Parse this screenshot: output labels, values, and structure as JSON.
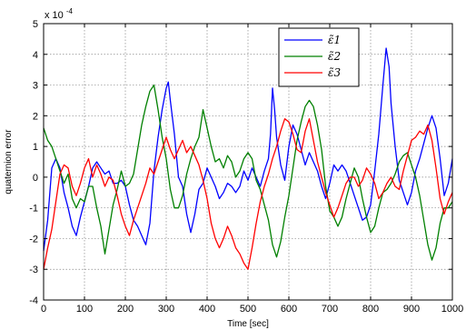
{
  "chart_data": {
    "type": "line",
    "xlabel": "Time [sec]",
    "ylabel": "quaternion error",
    "scale_label": "x 10",
    "scale_exponent": "-4",
    "xlim": [
      0,
      1000
    ],
    "ylim": [
      -4,
      5
    ],
    "x_ticks": [
      "0",
      "100",
      "200",
      "300",
      "400",
      "500",
      "600",
      "700",
      "800",
      "900",
      "1000"
    ],
    "y_ticks": [
      "-4",
      "-3",
      "-2",
      "-1",
      "0",
      "1",
      "2",
      "3",
      "4",
      "5"
    ],
    "grid": true,
    "legend_position": "top-right",
    "series": [
      {
        "name": "ε̃1",
        "color": "#0000ff",
        "points": [
          [
            0,
            -2.4
          ],
          [
            10,
            -1.4
          ],
          [
            20,
            0.3
          ],
          [
            30,
            0.6
          ],
          [
            40,
            0.3
          ],
          [
            50,
            -0.5
          ],
          [
            60,
            -1.0
          ],
          [
            70,
            -1.6
          ],
          [
            80,
            -1.9
          ],
          [
            90,
            -1.3
          ],
          [
            100,
            -0.8
          ],
          [
            110,
            -0.3
          ],
          [
            120,
            0.3
          ],
          [
            130,
            0.5
          ],
          [
            140,
            0.3
          ],
          [
            150,
            0.1
          ],
          [
            160,
            0.2
          ],
          [
            170,
            -0.2
          ],
          [
            180,
            -0.2
          ],
          [
            190,
            -0.1
          ],
          [
            200,
            -0.3
          ],
          [
            210,
            -0.9
          ],
          [
            220,
            -1.4
          ],
          [
            230,
            -1.6
          ],
          [
            240,
            -1.9
          ],
          [
            250,
            -2.2
          ],
          [
            260,
            -1.5
          ],
          [
            270,
            0.2
          ],
          [
            280,
            1.3
          ],
          [
            290,
            2.2
          ],
          [
            300,
            2.9
          ],
          [
            305,
            3.1
          ],
          [
            310,
            2.5
          ],
          [
            320,
            1.4
          ],
          [
            330,
            0.0
          ],
          [
            340,
            -0.3
          ],
          [
            350,
            -1.2
          ],
          [
            360,
            -1.8
          ],
          [
            370,
            -1.2
          ],
          [
            380,
            -0.4
          ],
          [
            390,
            -0.2
          ],
          [
            400,
            0.3
          ],
          [
            410,
            0.0
          ],
          [
            420,
            -0.3
          ],
          [
            430,
            -0.7
          ],
          [
            440,
            -0.5
          ],
          [
            450,
            -0.2
          ],
          [
            460,
            -0.3
          ],
          [
            470,
            -0.5
          ],
          [
            480,
            -0.3
          ],
          [
            490,
            0.2
          ],
          [
            500,
            -0.1
          ],
          [
            510,
            0.3
          ],
          [
            520,
            0.0
          ],
          [
            530,
            -0.3
          ],
          [
            540,
            0.2
          ],
          [
            550,
            0.6
          ],
          [
            555,
            1.4
          ],
          [
            560,
            2.9
          ],
          [
            565,
            2.2
          ],
          [
            570,
            1.3
          ],
          [
            580,
            0.4
          ],
          [
            590,
            -0.1
          ],
          [
            600,
            1.0
          ],
          [
            610,
            1.7
          ],
          [
            620,
            1.4
          ],
          [
            630,
            0.9
          ],
          [
            640,
            0.4
          ],
          [
            650,
            0.8
          ],
          [
            660,
            0.5
          ],
          [
            670,
            0.2
          ],
          [
            680,
            -0.3
          ],
          [
            690,
            -0.7
          ],
          [
            700,
            -0.2
          ],
          [
            710,
            0.4
          ],
          [
            720,
            0.2
          ],
          [
            730,
            0.4
          ],
          [
            740,
            0.2
          ],
          [
            750,
            -0.2
          ],
          [
            760,
            -0.6
          ],
          [
            770,
            -1.0
          ],
          [
            780,
            -1.4
          ],
          [
            790,
            -1.3
          ],
          [
            800,
            -0.9
          ],
          [
            810,
            0.2
          ],
          [
            820,
            1.4
          ],
          [
            830,
            3.0
          ],
          [
            838,
            4.2
          ],
          [
            845,
            3.6
          ],
          [
            850,
            2.4
          ],
          [
            860,
            1.0
          ],
          [
            870,
            -0.1
          ],
          [
            880,
            -0.5
          ],
          [
            890,
            -0.9
          ],
          [
            900,
            -0.5
          ],
          [
            910,
            0.2
          ],
          [
            920,
            0.6
          ],
          [
            930,
            1.1
          ],
          [
            940,
            1.6
          ],
          [
            950,
            2.0
          ],
          [
            960,
            1.6
          ],
          [
            970,
            0.6
          ],
          [
            980,
            -0.6
          ],
          [
            990,
            -0.2
          ],
          [
            1000,
            0.6
          ]
        ]
      },
      {
        "name": "ε̃2",
        "color": "#008000",
        "points": [
          [
            0,
            1.6
          ],
          [
            10,
            1.2
          ],
          [
            20,
            1.0
          ],
          [
            30,
            0.6
          ],
          [
            40,
            0.2
          ],
          [
            50,
            -0.2
          ],
          [
            60,
            0.1
          ],
          [
            70,
            -0.7
          ],
          [
            80,
            -1.0
          ],
          [
            90,
            -0.7
          ],
          [
            100,
            -0.8
          ],
          [
            110,
            -0.3
          ],
          [
            120,
            -0.3
          ],
          [
            130,
            -1.0
          ],
          [
            140,
            -1.6
          ],
          [
            150,
            -2.5
          ],
          [
            160,
            -1.7
          ],
          [
            170,
            -0.9
          ],
          [
            180,
            -0.4
          ],
          [
            190,
            0.2
          ],
          [
            200,
            -0.3
          ],
          [
            210,
            -0.2
          ],
          [
            220,
            0.1
          ],
          [
            230,
            0.9
          ],
          [
            240,
            1.7
          ],
          [
            250,
            2.3
          ],
          [
            260,
            2.8
          ],
          [
            270,
            3.0
          ],
          [
            280,
            2.2
          ],
          [
            290,
            1.3
          ],
          [
            300,
            0.6
          ],
          [
            310,
            -0.4
          ],
          [
            320,
            -1.0
          ],
          [
            330,
            -1.0
          ],
          [
            340,
            -0.6
          ],
          [
            350,
            0.1
          ],
          [
            360,
            0.6
          ],
          [
            370,
            1.0
          ],
          [
            380,
            1.3
          ],
          [
            390,
            2.2
          ],
          [
            400,
            1.6
          ],
          [
            410,
            1.0
          ],
          [
            420,
            0.5
          ],
          [
            430,
            0.6
          ],
          [
            440,
            0.3
          ],
          [
            450,
            0.7
          ],
          [
            460,
            0.5
          ],
          [
            470,
            0.0
          ],
          [
            480,
            0.2
          ],
          [
            490,
            0.6
          ],
          [
            500,
            0.8
          ],
          [
            510,
            0.6
          ],
          [
            520,
            -0.1
          ],
          [
            530,
            -0.4
          ],
          [
            540,
            -0.9
          ],
          [
            550,
            -1.4
          ],
          [
            560,
            -2.2
          ],
          [
            570,
            -2.6
          ],
          [
            580,
            -2.1
          ],
          [
            590,
            -1.3
          ],
          [
            600,
            -0.6
          ],
          [
            610,
            0.3
          ],
          [
            620,
            1.2
          ],
          [
            630,
            1.8
          ],
          [
            640,
            2.3
          ],
          [
            650,
            2.5
          ],
          [
            660,
            2.3
          ],
          [
            670,
            1.7
          ],
          [
            680,
            0.9
          ],
          [
            690,
            -0.3
          ],
          [
            700,
            -1.1
          ],
          [
            710,
            -1.3
          ],
          [
            720,
            -1.6
          ],
          [
            730,
            -1.3
          ],
          [
            740,
            -0.7
          ],
          [
            750,
            -0.2
          ],
          [
            760,
            0.3
          ],
          [
            770,
            0.0
          ],
          [
            780,
            -0.7
          ],
          [
            790,
            -1.3
          ],
          [
            800,
            -1.8
          ],
          [
            810,
            -1.6
          ],
          [
            820,
            -1.0
          ],
          [
            830,
            -0.5
          ],
          [
            840,
            -0.4
          ],
          [
            850,
            -0.2
          ],
          [
            860,
            0.1
          ],
          [
            870,
            0.5
          ],
          [
            880,
            0.7
          ],
          [
            890,
            0.8
          ],
          [
            900,
            0.4
          ],
          [
            910,
            0.0
          ],
          [
            920,
            -0.6
          ],
          [
            930,
            -1.4
          ],
          [
            940,
            -2.2
          ],
          [
            950,
            -2.7
          ],
          [
            960,
            -2.3
          ],
          [
            970,
            -1.5
          ],
          [
            980,
            -1.0
          ],
          [
            990,
            -1.0
          ],
          [
            1000,
            -0.8
          ]
        ]
      },
      {
        "name": "ε̃3",
        "color": "#ff0000",
        "points": [
          [
            0,
            -3.0
          ],
          [
            10,
            -2.3
          ],
          [
            20,
            -1.7
          ],
          [
            30,
            -0.8
          ],
          [
            40,
            0.1
          ],
          [
            50,
            0.4
          ],
          [
            60,
            0.3
          ],
          [
            70,
            -0.3
          ],
          [
            80,
            -0.6
          ],
          [
            90,
            -0.2
          ],
          [
            100,
            0.3
          ],
          [
            110,
            0.6
          ],
          [
            120,
            0.0
          ],
          [
            130,
            0.4
          ],
          [
            140,
            0.1
          ],
          [
            150,
            -0.3
          ],
          [
            160,
            0.0
          ],
          [
            170,
            -0.1
          ],
          [
            180,
            -0.6
          ],
          [
            190,
            -1.2
          ],
          [
            200,
            -1.6
          ],
          [
            210,
            -1.9
          ],
          [
            220,
            -1.4
          ],
          [
            230,
            -1.0
          ],
          [
            240,
            -0.6
          ],
          [
            250,
            -0.2
          ],
          [
            260,
            0.3
          ],
          [
            270,
            0.1
          ],
          [
            280,
            0.5
          ],
          [
            290,
            0.9
          ],
          [
            300,
            1.3
          ],
          [
            310,
            0.9
          ],
          [
            320,
            0.6
          ],
          [
            330,
            0.9
          ],
          [
            340,
            1.2
          ],
          [
            350,
            0.8
          ],
          [
            360,
            1.0
          ],
          [
            370,
            0.7
          ],
          [
            380,
            0.4
          ],
          [
            390,
            -0.1
          ],
          [
            400,
            -0.7
          ],
          [
            410,
            -1.5
          ],
          [
            420,
            -2.0
          ],
          [
            430,
            -2.3
          ],
          [
            440,
            -2.0
          ],
          [
            450,
            -1.6
          ],
          [
            460,
            -1.9
          ],
          [
            470,
            -2.3
          ],
          [
            480,
            -2.5
          ],
          [
            490,
            -2.8
          ],
          [
            500,
            -3.0
          ],
          [
            510,
            -2.3
          ],
          [
            520,
            -1.5
          ],
          [
            530,
            -0.8
          ],
          [
            540,
            -0.3
          ],
          [
            550,
            0.1
          ],
          [
            560,
            0.6
          ],
          [
            570,
            1.0
          ],
          [
            580,
            1.5
          ],
          [
            590,
            1.9
          ],
          [
            600,
            1.8
          ],
          [
            610,
            1.4
          ],
          [
            620,
            0.9
          ],
          [
            630,
            0.8
          ],
          [
            640,
            1.5
          ],
          [
            650,
            1.9
          ],
          [
            660,
            1.2
          ],
          [
            670,
            0.5
          ],
          [
            680,
            0.0
          ],
          [
            690,
            -0.5
          ],
          [
            700,
            -0.9
          ],
          [
            710,
            -1.3
          ],
          [
            720,
            -1.0
          ],
          [
            730,
            -0.6
          ],
          [
            740,
            -0.2
          ],
          [
            750,
            0.0
          ],
          [
            760,
            0.0
          ],
          [
            770,
            -0.3
          ],
          [
            780,
            -0.1
          ],
          [
            790,
            0.3
          ],
          [
            800,
            0.1
          ],
          [
            810,
            -0.2
          ],
          [
            820,
            -0.7
          ],
          [
            830,
            -0.5
          ],
          [
            840,
            -0.2
          ],
          [
            850,
            0.0
          ],
          [
            860,
            -0.3
          ],
          [
            870,
            -0.4
          ],
          [
            880,
            0.2
          ],
          [
            890,
            0.7
          ],
          [
            900,
            1.2
          ],
          [
            910,
            1.3
          ],
          [
            920,
            1.5
          ],
          [
            930,
            1.4
          ],
          [
            940,
            1.7
          ],
          [
            950,
            1.2
          ],
          [
            960,
            0.3
          ],
          [
            970,
            -0.7
          ],
          [
            980,
            -1.2
          ],
          [
            990,
            -0.8
          ],
          [
            1000,
            -0.5
          ]
        ]
      }
    ]
  }
}
